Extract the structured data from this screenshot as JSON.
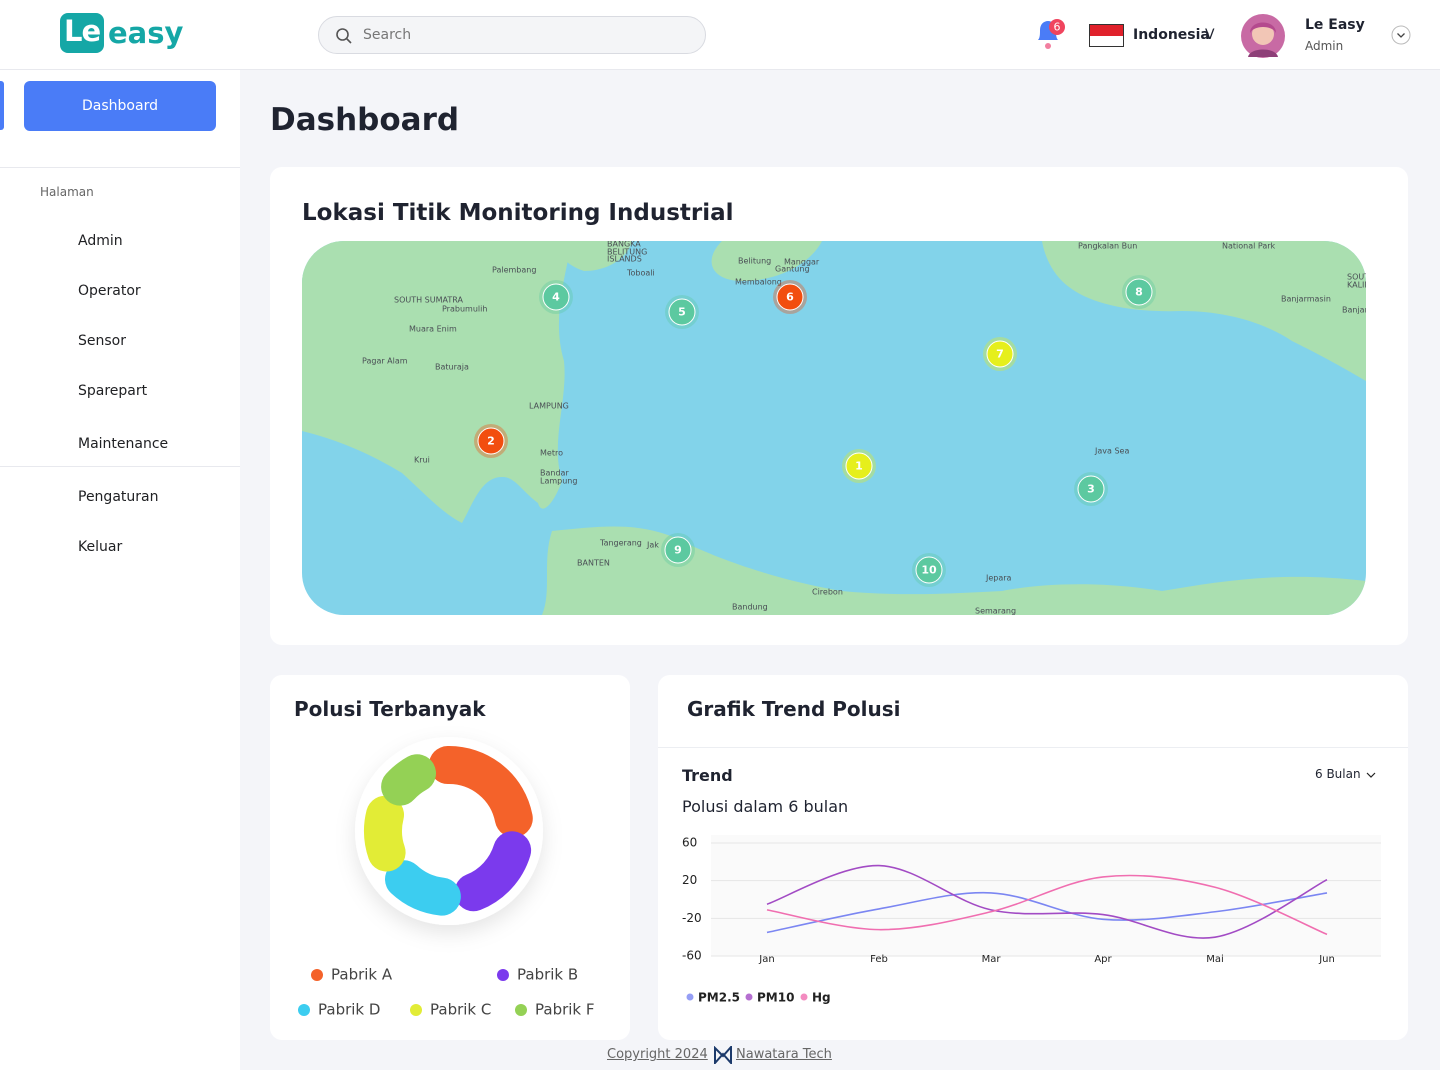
{
  "header": {
    "logo_mark": "Le",
    "logo_text": "easy",
    "search_placeholder": "Search",
    "notification_count": 6,
    "language": "Indonesia",
    "language_toggle": "V",
    "user_name": "Le Easy",
    "user_role": "Admin"
  },
  "sidebar": {
    "active": "Dashboard",
    "section_label": "Halaman",
    "items": [
      "Admin",
      "Operator",
      "Sensor",
      "Sparepart",
      "Maintenance"
    ],
    "footer_items": [
      "Pengaturan",
      "Keluar"
    ]
  },
  "page_title": "Dashboard",
  "map": {
    "title": "Lokasi Titik Monitoring Industrial",
    "markers": [
      {
        "label": "1",
        "color": "#e6ef1c"
      },
      {
        "label": "2",
        "color": "#f24e0f"
      },
      {
        "label": "3",
        "color": "#5cc9a0"
      },
      {
        "label": "4",
        "color": "#5cc9a0"
      },
      {
        "label": "5",
        "color": "#5cc9a0"
      },
      {
        "label": "6",
        "color": "#f24e0f"
      },
      {
        "label": "7",
        "color": "#e6ef1c"
      },
      {
        "label": "8",
        "color": "#5cc9a0"
      },
      {
        "label": "9",
        "color": "#5cc9a0"
      },
      {
        "label": "10",
        "color": "#5cc9a0"
      }
    ],
    "place_labels": [
      "BANGKA",
      "BELITUNG",
      "ISLANDS",
      "Toboali",
      "Belitung",
      "Manggar",
      "Gantung",
      "Membalong",
      "Pangkalan Bun",
      "National Park",
      "Palembang",
      "SOUTH SUMATRA",
      "Prabumulih",
      "Muara Enim",
      "Pagar Alam",
      "Baturaja",
      "LAMPUNG",
      "Metro",
      "Bandar",
      "Lampung",
      "Krui",
      "Java Sea",
      "Banjarmasin",
      "Banjarbaru",
      "SOUTH",
      "KALIMA",
      "Tangerang",
      "Jak",
      "BANTEN",
      "Bandung",
      "Cirebon",
      "Jepara",
      "Semarang"
    ]
  },
  "chart_data": [
    {
      "type": "donut",
      "title": "Polusi Terbanyak",
      "categories": [
        "Pabrik A",
        "Pabrik B",
        "Pabrik D",
        "Pabrik C",
        "Pabrik F"
      ],
      "values": [
        30,
        22,
        18,
        17,
        13
      ],
      "colors": [
        "#f4622a",
        "#7b3aed",
        "#3ccdf0",
        "#e2ec36",
        "#94d155"
      ]
    },
    {
      "type": "line",
      "title": "Grafik Trend Polusi",
      "subtitle": "Trend",
      "description": "Polusi dalam 6 bulan",
      "period": "6 Bulan",
      "categories": [
        "Jan",
        "Feb",
        "Mar",
        "Apr",
        "Mai",
        "Jun"
      ],
      "series": [
        {
          "name": "PM2.5",
          "color": "#7b86f2",
          "values": [
            -35,
            -10,
            7,
            -21,
            -13,
            7
          ]
        },
        {
          "name": "PM10",
          "color": "#a24bc4",
          "values": [
            -5,
            36,
            -11,
            -16,
            -40,
            21
          ]
        },
        {
          "name": "Hg",
          "color": "#f06eb0",
          "values": [
            -11,
            -32,
            -13,
            24,
            13,
            -37
          ]
        }
      ],
      "ylim": [
        -60,
        60
      ],
      "yticks": [
        60,
        20,
        -20,
        -60
      ],
      "grid": true
    }
  ],
  "footer": {
    "copyright": "Copyright 2024",
    "company": "Nawatara Tech"
  }
}
